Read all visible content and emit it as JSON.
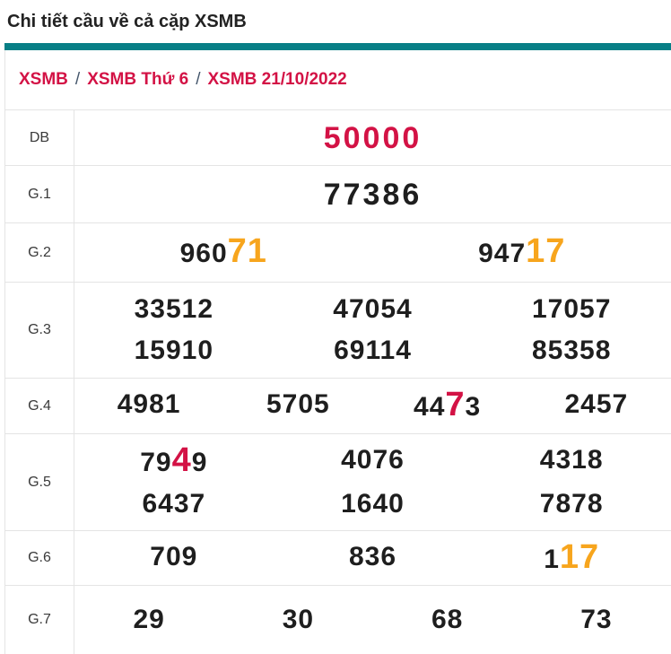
{
  "page": {
    "title": "Chi tiết cầu về cả cặp XSMB"
  },
  "breadcrumb": {
    "separator": "/",
    "items": [
      "XSMB",
      "XSMB Thứ 6",
      "XSMB 21/10/2022"
    ]
  },
  "colors": {
    "teal": "#077f86",
    "crimson": "#d31245",
    "orange": "#f7a51d",
    "number": "#1e1e1e"
  },
  "table": {
    "rows": [
      {
        "label": "DB",
        "accent": "red",
        "big": true,
        "lines": [
          [
            [
              {
                "t": "50000"
              }
            ]
          ]
        ]
      },
      {
        "label": "G.1",
        "big": true,
        "lines": [
          [
            [
              {
                "t": "77386"
              }
            ]
          ]
        ]
      },
      {
        "label": "G.2",
        "lines": [
          [
            [
              {
                "t": "960"
              },
              {
                "t": "71",
                "hl": "orange"
              }
            ],
            [
              {
                "t": "947"
              },
              {
                "t": "17",
                "hl": "orange"
              }
            ]
          ]
        ]
      },
      {
        "label": "G.3",
        "lines": [
          [
            [
              {
                "t": "33512"
              }
            ],
            [
              {
                "t": "47054"
              }
            ],
            [
              {
                "t": "17057"
              }
            ]
          ],
          [
            [
              {
                "t": "15910"
              }
            ],
            [
              {
                "t": "69114"
              }
            ],
            [
              {
                "t": "85358"
              }
            ]
          ]
        ]
      },
      {
        "label": "G.4",
        "lines": [
          [
            [
              {
                "t": "4981"
              }
            ],
            [
              {
                "t": "5705"
              }
            ],
            [
              {
                "t": "44"
              },
              {
                "t": "7",
                "hl": "red"
              },
              {
                "t": "3"
              }
            ],
            [
              {
                "t": "2457"
              }
            ]
          ]
        ]
      },
      {
        "label": "G.5",
        "lines": [
          [
            [
              {
                "t": "79"
              },
              {
                "t": "4",
                "hl": "red"
              },
              {
                "t": "9"
              }
            ],
            [
              {
                "t": "4076"
              }
            ],
            [
              {
                "t": "4318"
              }
            ]
          ],
          [
            [
              {
                "t": "6437"
              }
            ],
            [
              {
                "t": "1640"
              }
            ],
            [
              {
                "t": "7878"
              }
            ]
          ]
        ]
      },
      {
        "label": "G.6",
        "lines": [
          [
            [
              {
                "t": "709"
              }
            ],
            [
              {
                "t": "836"
              }
            ],
            [
              {
                "t": "1"
              },
              {
                "t": "17",
                "hl": "orange"
              }
            ]
          ]
        ]
      },
      {
        "label": "G.7",
        "lines": [
          [
            [
              {
                "t": "29"
              }
            ],
            [
              {
                "t": "30"
              }
            ],
            [
              {
                "t": "68"
              }
            ],
            [
              {
                "t": "73"
              }
            ]
          ]
        ]
      }
    ]
  }
}
